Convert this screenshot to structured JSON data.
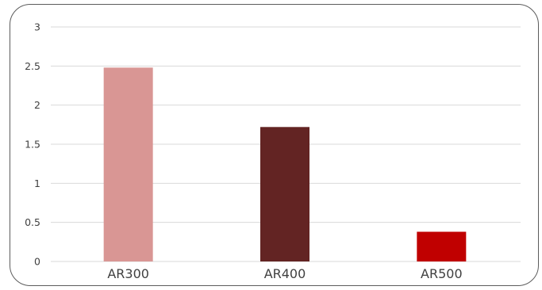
{
  "chart_data": {
    "type": "bar",
    "title": "",
    "xlabel": "",
    "ylabel": "",
    "categories": [
      "AR300",
      "AR400",
      "AR500"
    ],
    "values": [
      2.48,
      1.72,
      0.38
    ],
    "colors": [
      "#d99694",
      "#632423",
      "#c00000"
    ],
    "ylim": [
      0,
      3
    ],
    "yticks": [
      0,
      0.5,
      1,
      1.5,
      2,
      2.5,
      3
    ],
    "ytick_labels": [
      "0",
      "0.5",
      "1",
      "1.5",
      "2",
      "2.5",
      "3"
    ],
    "grid": true,
    "legend": "none"
  }
}
